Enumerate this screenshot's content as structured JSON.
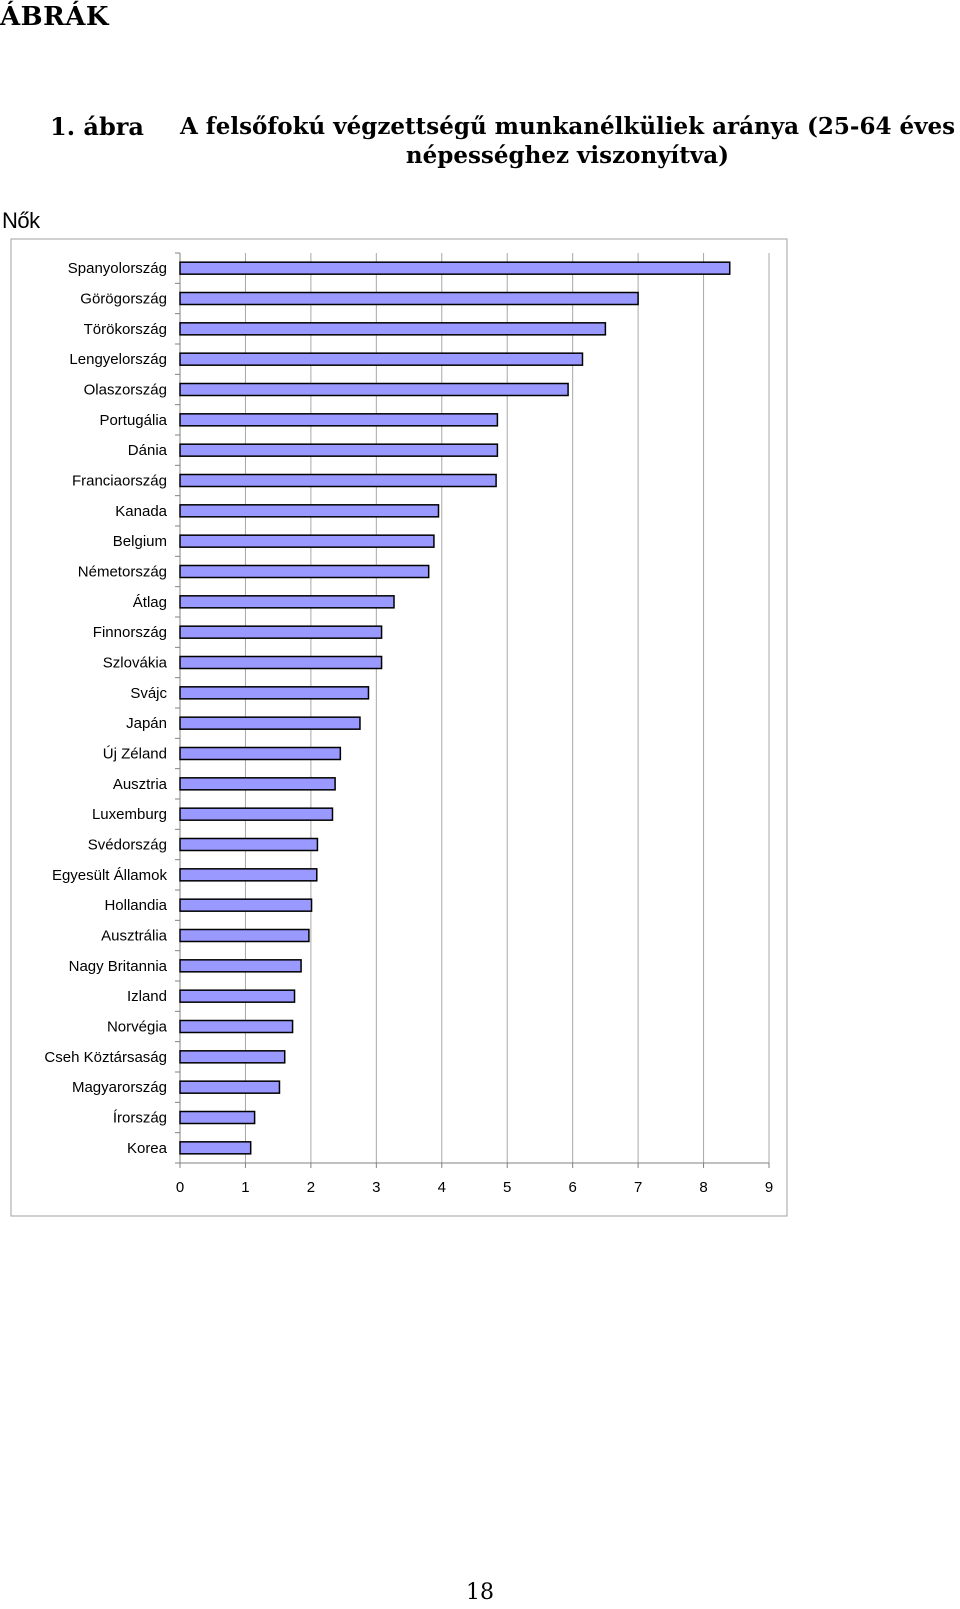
{
  "page": {
    "section_heading": "ÁBRÁK",
    "figure_number": "1. ábra",
    "figure_title": "A felsőfokú végzettségű munkanélküliek aránya (25-64 éves népességhez viszonyítva)",
    "panel_label": "Nők",
    "page_number": "18"
  },
  "chart_data": {
    "type": "bar",
    "orientation": "horizontal",
    "categories": [
      "Spanyolország",
      "Görögország",
      "Törökország",
      "Lengyelország",
      "Olaszország",
      "Portugália",
      "Dánia",
      "Franciaország",
      "Kanada",
      "Belgium",
      "Németország",
      "Átlag",
      "Finnország",
      "Szlovákia",
      "Svájc",
      "Japán",
      "Új Zéland",
      "Ausztria",
      "Luxemburg",
      "Svédország",
      "Egyesült Államok",
      "Hollandia",
      "Ausztrália",
      "Nagy Britannia",
      "Izland",
      "Norvégia",
      "Cseh Köztársaság",
      "Magyarország",
      "Írország",
      "Korea"
    ],
    "values": [
      8.4,
      7.0,
      6.5,
      6.15,
      5.93,
      4.85,
      4.85,
      4.83,
      3.95,
      3.88,
      3.8,
      3.27,
      3.08,
      3.08,
      2.88,
      2.75,
      2.45,
      2.37,
      2.33,
      2.1,
      2.09,
      2.01,
      1.97,
      1.85,
      1.75,
      1.72,
      1.6,
      1.52,
      1.14,
      1.08
    ],
    "xlim": [
      0,
      9
    ],
    "xticks": [
      "0",
      "1",
      "2",
      "3",
      "4",
      "5",
      "6",
      "7",
      "8",
      "9"
    ],
    "grid": true,
    "bar_color": "#9999FF",
    "bar_stroke": "#000000",
    "title": "",
    "xlabel": "",
    "ylabel": ""
  }
}
